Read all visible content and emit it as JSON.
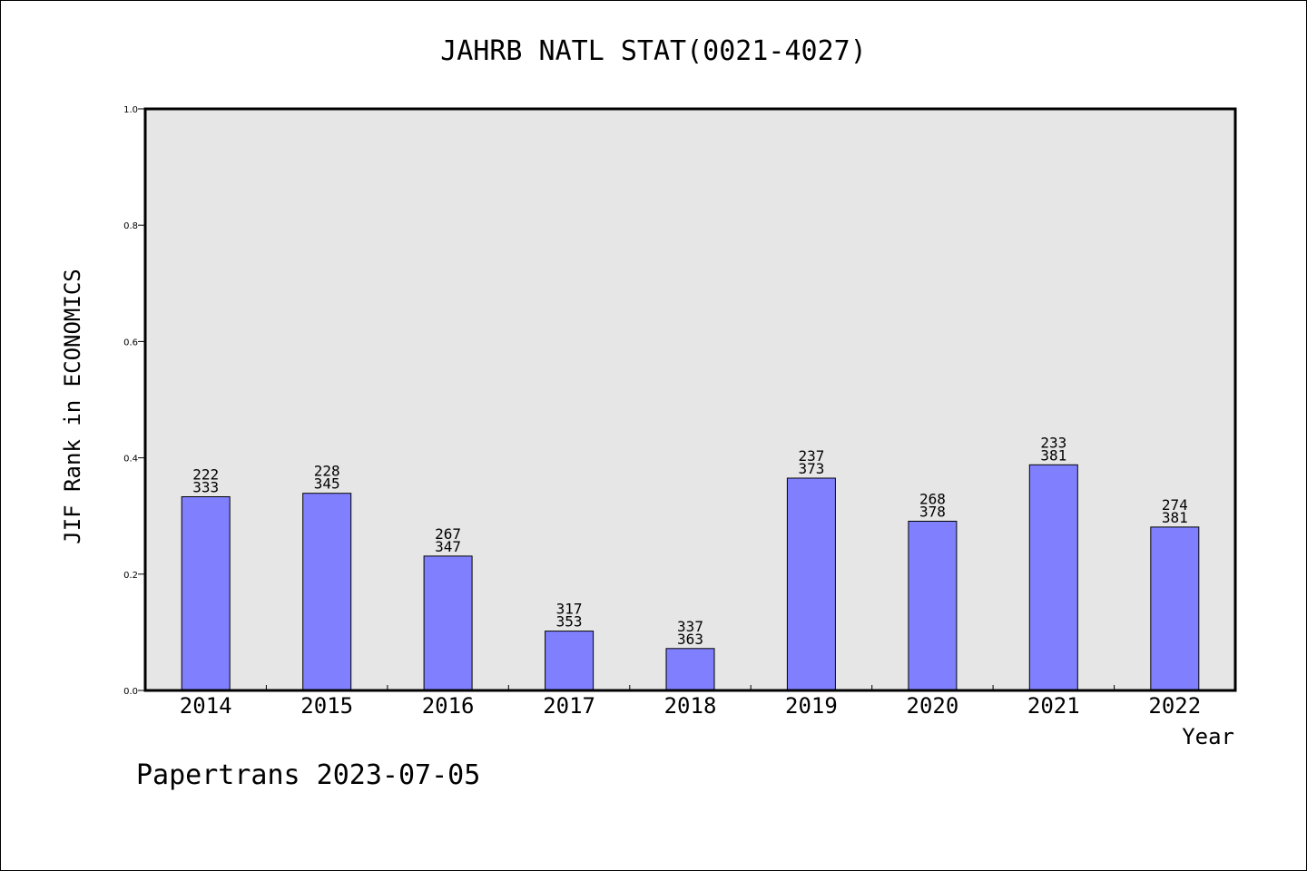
{
  "chart_data": {
    "type": "bar",
    "title": "JAHRB NATL STAT(0021-4027)",
    "xlabel": "Year",
    "ylabel": "JIF Rank in ECONOMICS",
    "ylim": [
      0,
      1.0
    ],
    "yticks": [
      "0.0",
      "0.2",
      "0.4",
      "0.6",
      "0.8",
      "1.0"
    ],
    "grid": false,
    "categories": [
      "2014",
      "2015",
      "2016",
      "2017",
      "2018",
      "2019",
      "2020",
      "2021",
      "2022"
    ],
    "values": [
      0.333,
      0.339,
      0.231,
      0.102,
      0.072,
      0.365,
      0.291,
      0.388,
      0.281
    ],
    "labels_top": [
      "222",
      "228",
      "267",
      "317",
      "337",
      "237",
      "268",
      "233",
      "274"
    ],
    "labels_bottom": [
      "333",
      "345",
      "347",
      "353",
      "363",
      "373",
      "378",
      "381",
      "381"
    ],
    "colors": {
      "bar": "#8080ff",
      "plot_bg": "#e6e6e6"
    }
  },
  "footer": "Papertrans 2023-07-05"
}
